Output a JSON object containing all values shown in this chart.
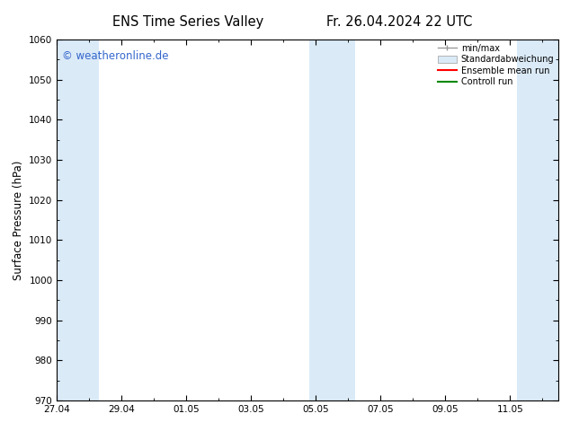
{
  "title_left": "ENS Time Series Valley",
  "title_right": "Fr. 26.04.2024 22 UTC",
  "ylabel": "Surface Pressure (hPa)",
  "ylim": [
    970,
    1060
  ],
  "yticks": [
    970,
    980,
    990,
    1000,
    1010,
    1020,
    1030,
    1040,
    1050,
    1060
  ],
  "xtick_labels": [
    "27.04",
    "29.04",
    "01.05",
    "03.05",
    "05.05",
    "07.05",
    "09.05",
    "11.05"
  ],
  "xtick_positions": [
    0,
    2,
    4,
    6,
    8,
    10,
    12,
    14
  ],
  "xlim": [
    0,
    15.5
  ],
  "watermark": "© weatheronline.de",
  "watermark_color": "#3366cc",
  "shaded_bands": [
    {
      "start": 0.0,
      "end": 1.3
    },
    {
      "start": 7.8,
      "end": 9.2
    },
    {
      "start": 14.2,
      "end": 15.5
    }
  ],
  "shaded_color": "#daeaf7",
  "background_color": "#ffffff",
  "legend_items": [
    {
      "label": "min/max",
      "color": "#999999",
      "style": "minmax"
    },
    {
      "label": "Standardabweichung",
      "color": "#aaaaaa",
      "style": "fill"
    },
    {
      "label": "Ensemble mean run",
      "color": "#ff0000",
      "style": "line"
    },
    {
      "label": "Controll run",
      "color": "#008800",
      "style": "line"
    }
  ],
  "tick_fontsize": 7.5,
  "label_fontsize": 8.5,
  "title_fontsize": 10.5
}
